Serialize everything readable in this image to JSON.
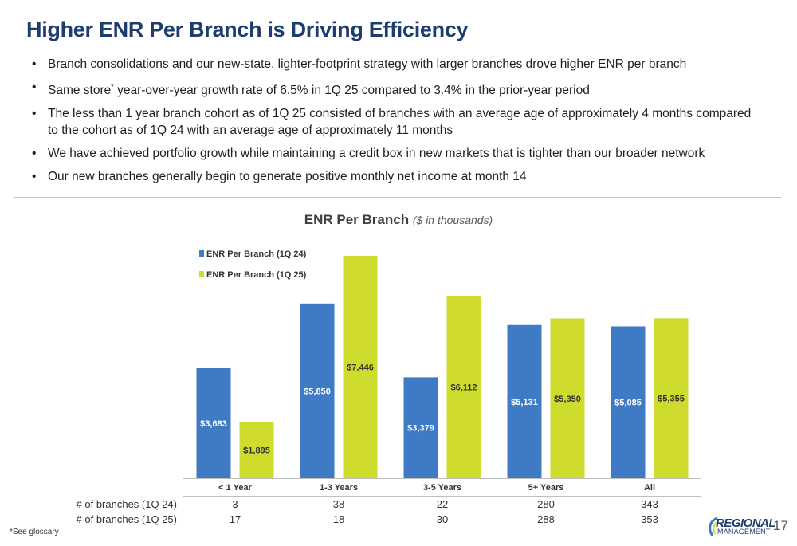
{
  "title": "Higher ENR Per Branch is Driving Efficiency",
  "bullets": [
    {
      "pre": "Branch consolidations and our new-state, lighter-footprint strategy with larger branches drove higher ENR per branch",
      "sup": "",
      "post": ""
    },
    {
      "pre": "Same store",
      "sup": "*",
      "post": " year-over-year growth rate of 6.5% in 1Q 25 compared to 3.4% in the prior-year period"
    },
    {
      "pre": "The less than 1 year branch cohort as of 1Q 25 consisted of branches with an average age of approximately 4 months compared to the cohort as of 1Q 24 with an average age of approximately 11 months",
      "sup": "",
      "post": ""
    },
    {
      "pre": "We have achieved portfolio growth while maintaining a credit box in new markets that is tighter than our broader network",
      "sup": "",
      "post": ""
    },
    {
      "pre": "Our new branches generally begin to generate positive monthly net income at month 14",
      "sup": "",
      "post": ""
    }
  ],
  "chart_title": "ENR Per Branch",
  "chart_subtitle": "($ in thousands)",
  "colors": {
    "series1": "#3f7bc4",
    "series2": "#cfdb2d",
    "title": "#1d3d6e",
    "rule": "#cfd733"
  },
  "chart_data": {
    "type": "bar",
    "title": "ENR Per Branch",
    "subtitle": "($ in thousands)",
    "categories": [
      "< 1 Year",
      "1-3 Years",
      "3-5 Years",
      "5+ Years",
      "All"
    ],
    "series": [
      {
        "name": "ENR Per Branch (1Q 24)",
        "values": [
          3683,
          5850,
          3379,
          5131,
          5085
        ],
        "labels": [
          "$3,683",
          "$5,850",
          "$3,379",
          "$5,131",
          "$5,085"
        ]
      },
      {
        "name": "ENR Per Branch (1Q 25)",
        "values": [
          1895,
          7446,
          6112,
          5350,
          5355
        ],
        "labels": [
          "$1,895",
          "$7,446",
          "$6,112",
          "$5,350",
          "$5,355"
        ]
      }
    ],
    "legend_position": "top-left",
    "ylim": [
      0,
      8000
    ],
    "table_rows": [
      {
        "label": "# of branches (1Q 24)",
        "values": [
          "3",
          "38",
          "22",
          "280",
          "343"
        ]
      },
      {
        "label": "# of branches (1Q 25)",
        "values": [
          "17",
          "18",
          "30",
          "288",
          "353"
        ]
      }
    ]
  },
  "footnote": "*See glossary",
  "logo": {
    "line1": "REGIONAL",
    "line2": "MANAGEMENT"
  },
  "page_number": "17"
}
